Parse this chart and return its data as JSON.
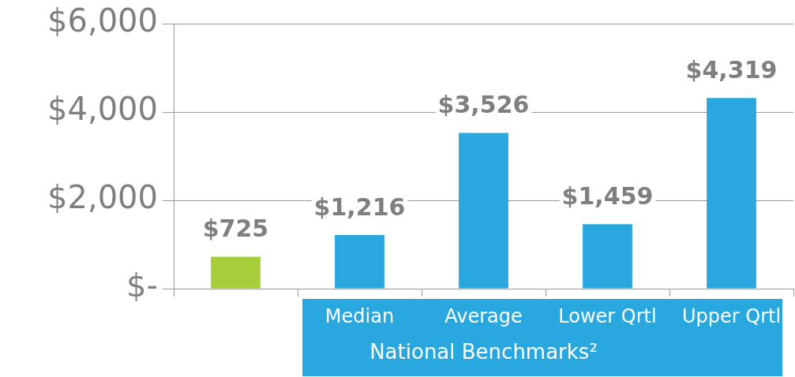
{
  "chart_data": {
    "type": "bar",
    "categories": [
      null,
      "Median",
      "Average",
      "Lower Qrtl",
      "Upper Qrtl"
    ],
    "values": [
      725,
      1216,
      3526,
      1459,
      4319
    ],
    "colors": [
      "#a6ce39",
      "#29a8e0",
      "#29a8e0",
      "#29a8e0",
      "#29a8e0"
    ],
    "value_labels": [
      "$725",
      "$1,216",
      "$3,526",
      "$1,459",
      "$4,319"
    ],
    "xlabel": "National Benchmarks²",
    "ylim": [
      0,
      6000
    ],
    "yticks": [
      {
        "value": 0,
        "label": "$-"
      },
      {
        "value": 2000,
        "label": "$2,000"
      },
      {
        "value": 4000,
        "label": "$4,000"
      },
      {
        "value": 6000,
        "label": "$6,000"
      }
    ],
    "grid": "y",
    "legend": false
  }
}
